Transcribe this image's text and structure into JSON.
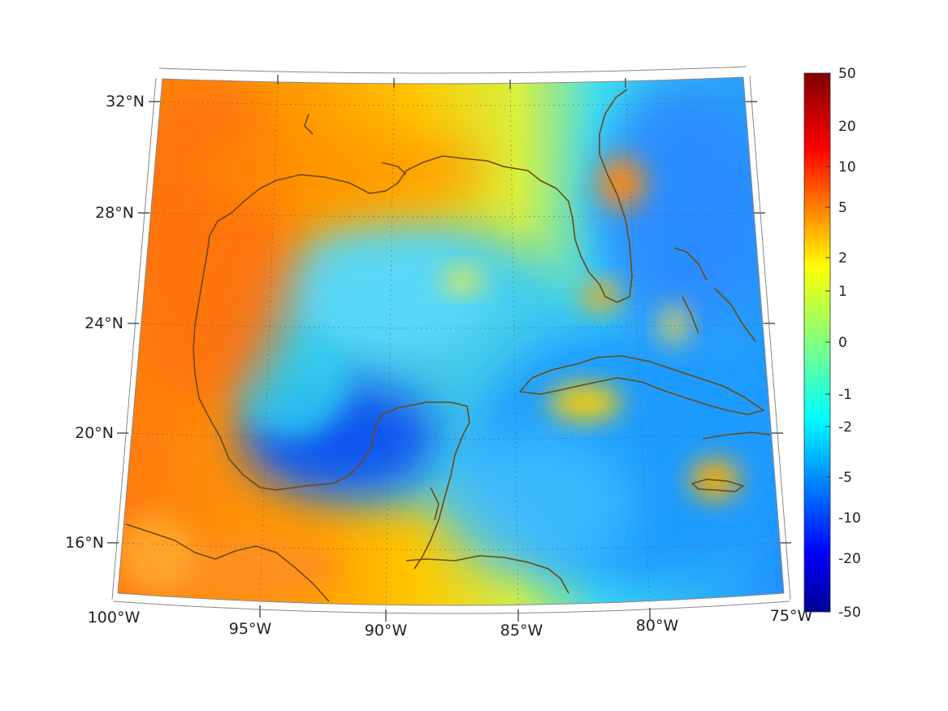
{
  "map": {
    "projection_note": "",
    "lat_labels": [
      "32°N",
      "28°N",
      "24°N",
      "20°N",
      "16°N"
    ],
    "lon_labels": [
      "100°W",
      "95°W",
      "90°W",
      "85°W",
      "80°W",
      "75°W"
    ],
    "coastline_color": "#6b4a10",
    "frame_color": "#888888",
    "grid": "dotted"
  },
  "colorbar": {
    "labels": [
      "50",
      "20",
      "10",
      "5",
      "2",
      "1",
      "0",
      "-1",
      "-2",
      "-5",
      "-10",
      "-20",
      "-50"
    ],
    "colormap": "jet",
    "colors": [
      "#7f0000",
      "#ff0000",
      "#ff4000",
      "#ff8000",
      "#ffc000",
      "#ffff00",
      "#80ff80",
      "#00ffff",
      "#00c0ff",
      "#0080ff",
      "#0000ff",
      "#0000c0",
      "#00008f"
    ]
  }
}
